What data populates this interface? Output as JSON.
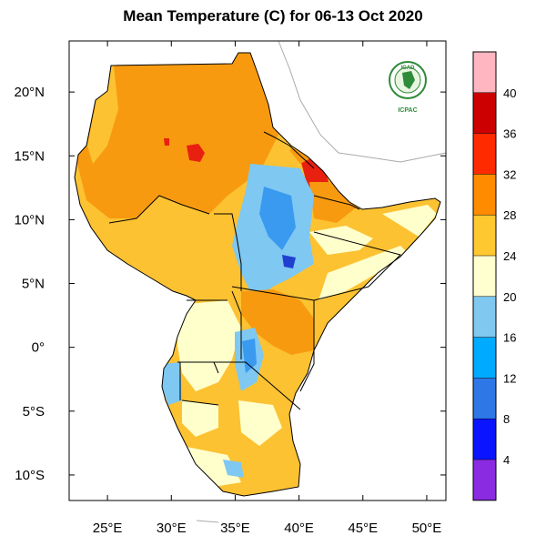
{
  "title": "Mean Temperature (C) for 06-13 Oct 2020",
  "logo": {
    "top_text": "IGAD",
    "bottom_text": "ICPAC",
    "icon": "igad-emblem-icon"
  },
  "map": {
    "lon_range": [
      22,
      51.5
    ],
    "lat_range": [
      -12,
      24
    ],
    "lon_ticks": [
      "25°E",
      "30°E",
      "35°E",
      "40°E",
      "45°E",
      "50°E"
    ],
    "lat_ticks": [
      "20°N",
      "15°N",
      "10°N",
      "5°N",
      "0°",
      "5°S",
      "10°S"
    ]
  },
  "colorbar": {
    "labels": [
      "40",
      "36",
      "32",
      "28",
      "24",
      "20",
      "16",
      "12",
      "8",
      "4"
    ],
    "colors": [
      "#ffb6c1",
      "#cc0000",
      "#ff2a00",
      "#ff8c00",
      "#ffc830",
      "#ffffd0",
      "#80c8f0",
      "#00aaff",
      "#2d78e6",
      "#0a14ff",
      "#8a2be2"
    ]
  },
  "colors": {
    "orange": "#f89a10",
    "yellow": "#fcc232",
    "light_yellow": "#ffffcc",
    "light_blue": "#7ec8f2",
    "blue": "#3a9af0",
    "dark_blue": "#2040d0",
    "red": "#e82010",
    "border": "#000000",
    "outside_border": "#999999"
  }
}
